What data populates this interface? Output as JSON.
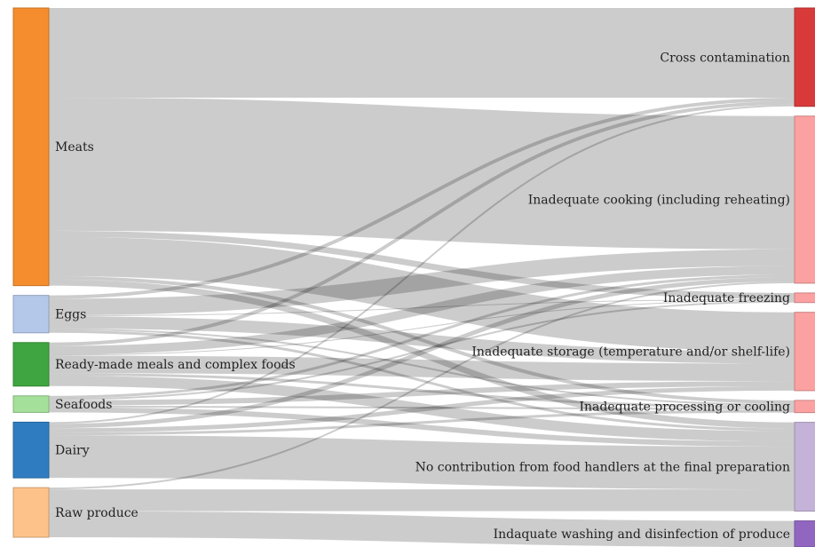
{
  "chart_data": {
    "type": "sankey",
    "sources": [
      {
        "id": "meats",
        "label": "Meats",
        "color": "#f58d2e"
      },
      {
        "id": "eggs",
        "label": "Eggs",
        "color": "#b4c8ea"
      },
      {
        "id": "ready",
        "label": "Ready-made meals and complex foods",
        "color": "#3fa540"
      },
      {
        "id": "seafoods",
        "label": "Seafoods",
        "color": "#a4e09a"
      },
      {
        "id": "dairy",
        "label": "Dairy",
        "color": "#2f7dc0"
      },
      {
        "id": "raw",
        "label": "Raw produce",
        "color": "#fdc28a"
      }
    ],
    "targets": [
      {
        "id": "cross",
        "label": "Cross contamination",
        "color": "#d83a3a"
      },
      {
        "id": "cooking",
        "label": "Inadequate cooking (including reheating)",
        "color": "#fca1a1"
      },
      {
        "id": "freezing",
        "label": "Inadequate freezing",
        "color": "#fca1a1"
      },
      {
        "id": "storage",
        "label": "Inadequate storage (temperature and/or shelf-life)",
        "color": "#fca1a1"
      },
      {
        "id": "processing",
        "label": "Inadequate processing or cooling",
        "color": "#fca1a1"
      },
      {
        "id": "nocontrib",
        "label": "No contribution from food handlers at the final preparation",
        "color": "#c5b2d8"
      },
      {
        "id": "washing",
        "label": "Indaquate washing and disinfection of produce",
        "color": "#9166c0"
      }
    ],
    "links": [
      {
        "source": "meats",
        "target": "cross",
        "value": 103
      },
      {
        "source": "meats",
        "target": "cooking",
        "value": 153
      },
      {
        "source": "meats",
        "target": "freezing",
        "value": 7
      },
      {
        "source": "meats",
        "target": "storage",
        "value": 45
      },
      {
        "source": "meats",
        "target": "processing",
        "value": 4
      },
      {
        "source": "meats",
        "target": "nocontrib",
        "value": 7
      },
      {
        "source": "eggs",
        "target": "cross",
        "value": 4
      },
      {
        "source": "eggs",
        "target": "cooking",
        "value": 19
      },
      {
        "source": "eggs",
        "target": "freezing",
        "value": 1
      },
      {
        "source": "eggs",
        "target": "storage",
        "value": 14
      },
      {
        "source": "eggs",
        "target": "processing",
        "value": 2
      },
      {
        "source": "eggs",
        "target": "nocontrib",
        "value": 3
      },
      {
        "source": "ready",
        "target": "cross",
        "value": 4
      },
      {
        "source": "ready",
        "target": "cooking",
        "value": 10
      },
      {
        "source": "ready",
        "target": "freezing",
        "value": 1
      },
      {
        "source": "ready",
        "target": "storage",
        "value": 20
      },
      {
        "source": "ready",
        "target": "processing",
        "value": 3
      },
      {
        "source": "ready",
        "target": "nocontrib",
        "value": 12
      },
      {
        "source": "seafoods",
        "target": "cooking",
        "value": 3
      },
      {
        "source": "seafoods",
        "target": "freezing",
        "value": 2
      },
      {
        "source": "seafoods",
        "target": "storage",
        "value": 6
      },
      {
        "source": "seafoods",
        "target": "processing",
        "value": 2
      },
      {
        "source": "seafoods",
        "target": "nocontrib",
        "value": 6
      },
      {
        "source": "dairy",
        "target": "cross",
        "value": 2
      },
      {
        "source": "dairy",
        "target": "cooking",
        "value": 5
      },
      {
        "source": "dairy",
        "target": "storage",
        "value": 5
      },
      {
        "source": "dairy",
        "target": "processing",
        "value": 3
      },
      {
        "source": "dairy",
        "target": "nocontrib",
        "value": 49
      },
      {
        "source": "raw",
        "target": "cooking",
        "value": 2
      },
      {
        "source": "raw",
        "target": "nocontrib",
        "value": 25
      },
      {
        "source": "raw",
        "target": "washing",
        "value": 30
      }
    ]
  }
}
